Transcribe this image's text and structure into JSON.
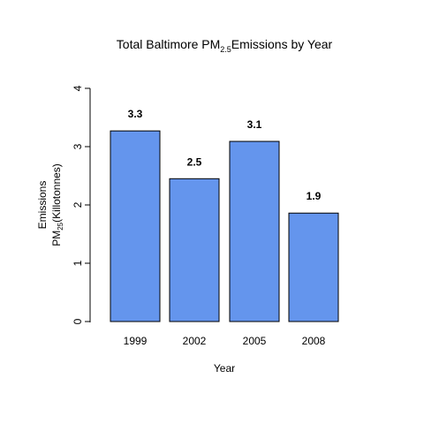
{
  "chart_data": {
    "type": "bar",
    "title": {
      "prefix": "Total Baltimore PM",
      "subscript": "2.5",
      "suffix": "Emissions by Year"
    },
    "xlabel": "Year",
    "ylabel": {
      "line1": "Emissions",
      "line2_prefix": "PM",
      "line2_subscript": "25",
      "line2_suffix": "(Killotonnes)"
    },
    "categories": [
      "1999",
      "2002",
      "2005",
      "2008"
    ],
    "values": [
      3.27,
      2.45,
      3.09,
      1.86
    ],
    "data_labels": [
      "3.3",
      "2.5",
      "3.1",
      "1.9"
    ],
    "yticks": [
      0,
      1,
      2,
      3,
      4
    ],
    "ylim": [
      0,
      4
    ],
    "bar_color": "#6495ED",
    "bar_border_color": "#000000",
    "grid": false,
    "legend": "none"
  }
}
